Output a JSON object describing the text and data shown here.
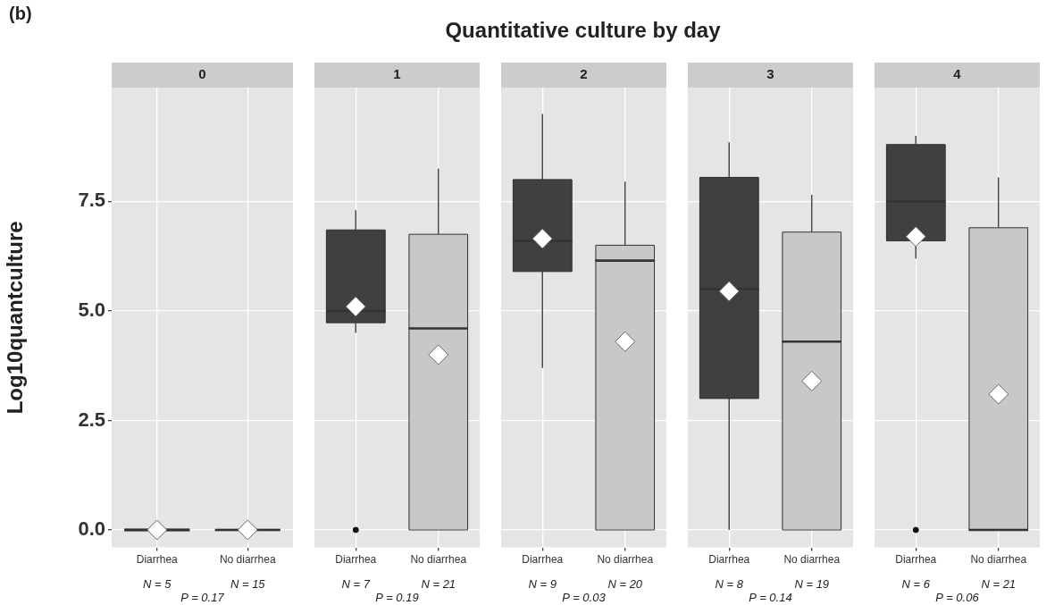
{
  "chart_data": [
    {
      "type": "other",
      "title": "Quantitative culture by day",
      "annotations": [
        "(b)"
      ]
    },
    {
      "type": "box",
      "subtitle": "0",
      "ylabel": "Log10quantculture",
      "categories": [
        "Diarrhea",
        "No diarrhea"
      ],
      "colors": [
        "#404040",
        "#c8c8c8"
      ],
      "boxes": [
        {
          "low": 0,
          "q1": 0,
          "median": 0,
          "q3": 0,
          "high": 0,
          "mean": 0
        },
        {
          "low": 0,
          "q1": 0,
          "median": 0,
          "q3": 0,
          "high": 0,
          "mean": 0
        }
      ],
      "ylim": [
        -0.4,
        10.1
      ],
      "yticks": [
        {
          "value": 0,
          "label": "0.0"
        },
        {
          "value": 2.5,
          "label": "2.5"
        },
        {
          "value": 5,
          "label": "5.0"
        },
        {
          "value": 7.5,
          "label": "7.5"
        }
      ],
      "grid": true,
      "annotations": [
        "N = 5",
        "N = 15",
        "P = 0.17"
      ]
    },
    {
      "type": "box",
      "subtitle": "1",
      "categories": [
        "Diarrhea",
        "No diarrhea"
      ],
      "colors": [
        "#404040",
        "#c8c8c8"
      ],
      "boxes": [
        {
          "low": 4.5,
          "q1": 4.73,
          "median": 5,
          "q3": 6.85,
          "high": 7.3,
          "mean": 5.1,
          "outliers": [
            0
          ]
        },
        {
          "low": 0,
          "q1": 0,
          "median": 4.6,
          "q3": 6.75,
          "high": 8.25,
          "mean": 4
        }
      ],
      "ylim": [
        -0.4,
        10.1
      ],
      "yticks": [
        0,
        2.5,
        5,
        7.5
      ],
      "grid": true,
      "tick_labels": "x",
      "annotations": [
        "N = 7",
        "N = 21",
        "P = 0.19"
      ]
    },
    {
      "type": "box",
      "subtitle": "2",
      "categories": [
        "Diarrhea",
        "No diarrhea"
      ],
      "colors": [
        "#404040",
        "#c8c8c8"
      ],
      "boxes": [
        {
          "low": 3.7,
          "q1": 5.9,
          "median": 6.6,
          "q3": 8,
          "high": 9.5,
          "mean": 6.65
        },
        {
          "low": 0,
          "q1": 0,
          "median": 6.15,
          "q3": 6.5,
          "high": 7.95,
          "mean": 4.3
        }
      ],
      "ylim": [
        -0.4,
        10.1
      ],
      "yticks": [
        0,
        2.5,
        5,
        7.5
      ],
      "grid": true,
      "tick_labels": "x",
      "annotations": [
        "N = 9",
        "N = 20",
        "P = 0.03"
      ]
    },
    {
      "type": "box",
      "subtitle": "3",
      "categories": [
        "Diarrhea",
        "No diarrhea"
      ],
      "colors": [
        "#404040",
        "#c8c8c8"
      ],
      "boxes": [
        {
          "low": 0,
          "q1": 3,
          "median": 5.5,
          "q3": 8.05,
          "high": 8.85,
          "mean": 5.45
        },
        {
          "low": 0,
          "q1": 0,
          "median": 4.3,
          "q3": 6.8,
          "high": 7.65,
          "mean": 3.4
        }
      ],
      "ylim": [
        -0.4,
        10.1
      ],
      "yticks": [
        0,
        2.5,
        5,
        7.5
      ],
      "grid": true,
      "tick_labels": "x",
      "annotations": [
        "N = 8",
        "N = 19",
        "P = 0.14"
      ]
    },
    {
      "type": "box",
      "subtitle": "4",
      "categories": [
        "Diarrhea",
        "No diarrhea"
      ],
      "colors": [
        "#404040",
        "#c8c8c8"
      ],
      "boxes": [
        {
          "low": 6.2,
          "q1": 6.6,
          "median": 7.5,
          "q3": 8.8,
          "high": 9,
          "mean": 6.7,
          "outliers": [
            0
          ]
        },
        {
          "low": 0,
          "q1": 0,
          "median": 0,
          "q3": 6.9,
          "high": 8.05,
          "mean": 3.1
        }
      ],
      "ylim": [
        -0.4,
        10.1
      ],
      "yticks": [
        0,
        2.5,
        5,
        7.5
      ],
      "grid": true,
      "tick_labels": "x",
      "annotations": [
        "N = 6",
        "N = 21",
        "P = 0.06"
      ]
    }
  ]
}
